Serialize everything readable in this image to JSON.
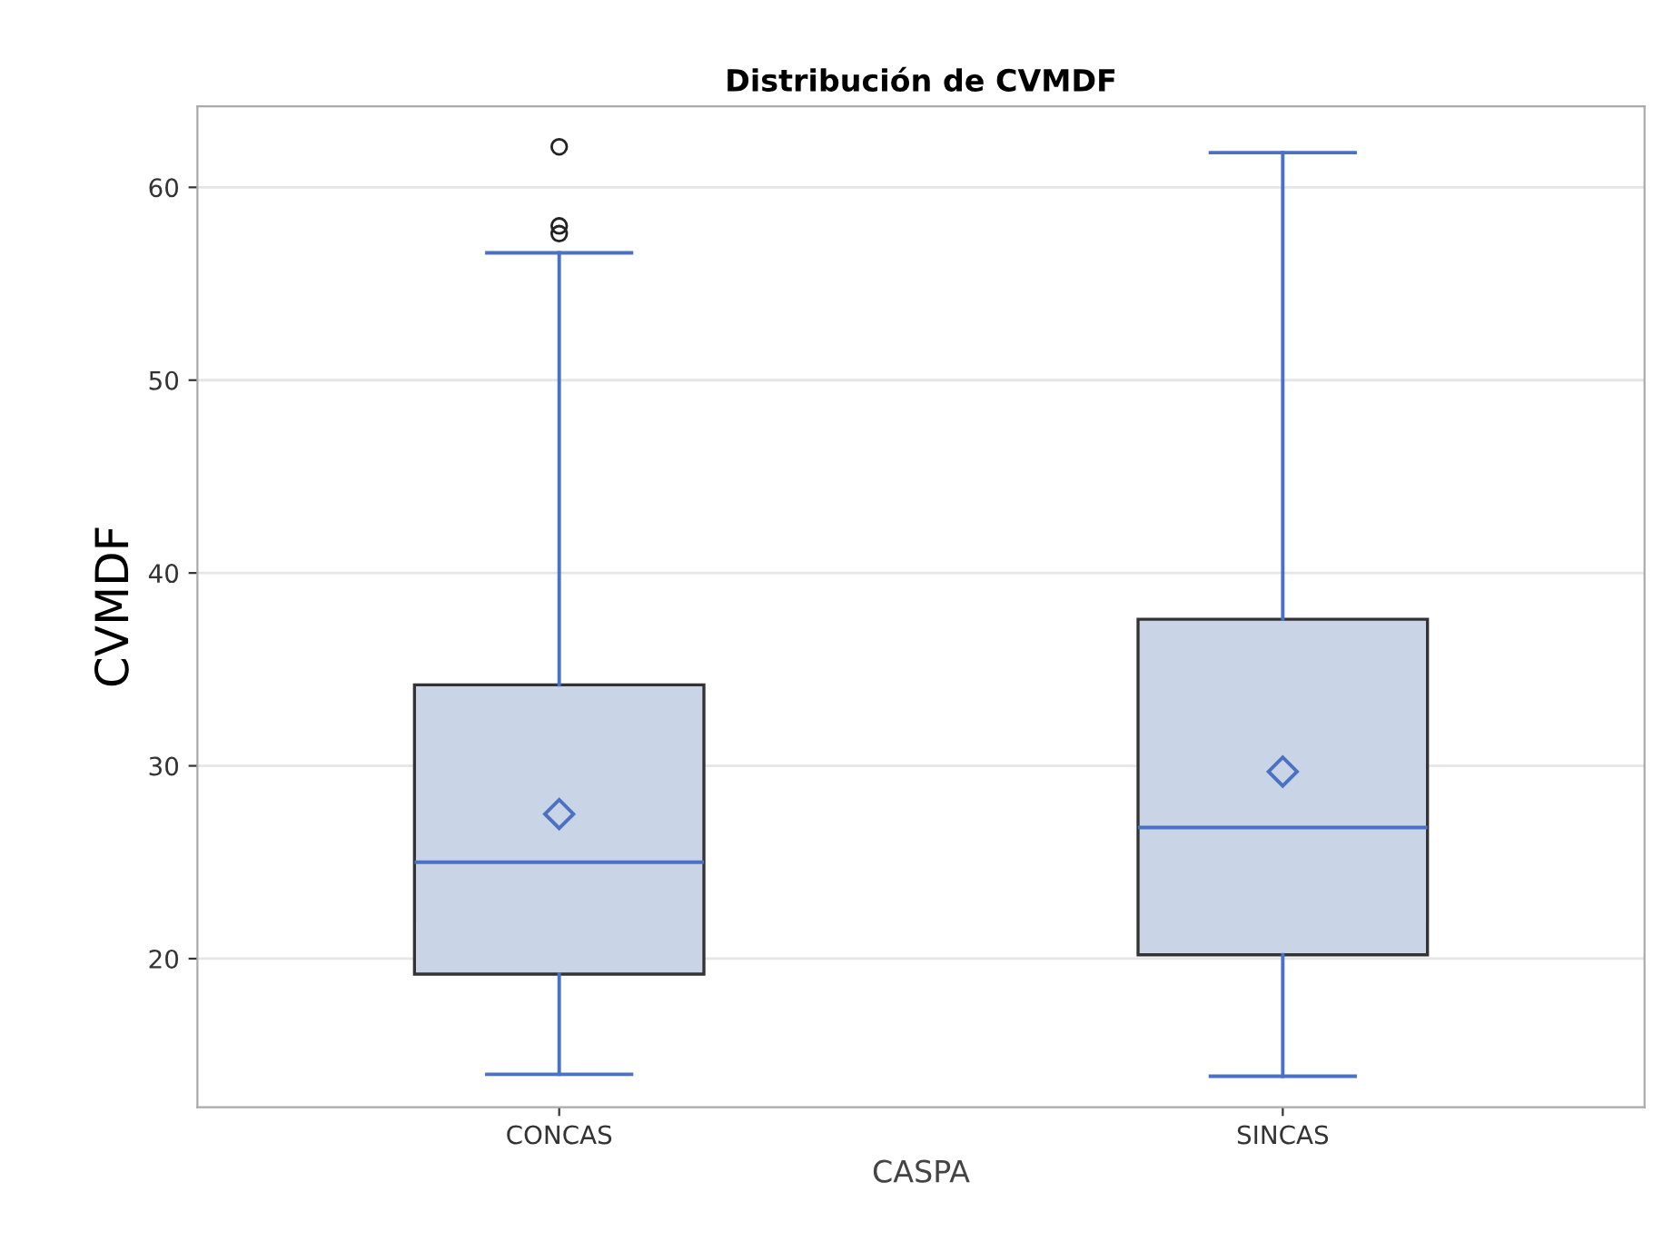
{
  "chart_data": {
    "type": "box",
    "title": "Distribución de CVMDF",
    "xlabel": "CASPA",
    "ylabel": "CVMDF",
    "categories": [
      "CONCAS",
      "SINCAS"
    ],
    "boxes": [
      {
        "low": 14.0,
        "q1": 19.2,
        "median": 25.0,
        "q3": 34.2,
        "high": 56.6,
        "mean": 27.5,
        "outliers": [
          57.6,
          58.0,
          62.1
        ]
      },
      {
        "low": 13.9,
        "q1": 20.2,
        "median": 26.8,
        "q3": 37.6,
        "high": 61.8,
        "mean": 29.7
      }
    ],
    "color": "#c9d5e6",
    "ylim": [
      12.3,
      64.2
    ],
    "yticks": [
      20,
      30,
      40,
      50,
      60
    ],
    "grid": "y",
    "marker": "diamond"
  }
}
